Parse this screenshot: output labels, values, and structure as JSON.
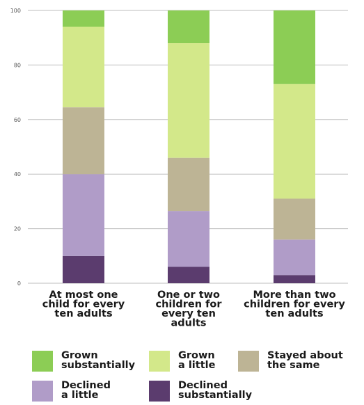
{
  "chart_data": {
    "type": "bar",
    "stacked": true,
    "title": "",
    "xlabel": "",
    "ylabel": "",
    "ylim": [
      0,
      100
    ],
    "yticks": [
      "0",
      "20",
      "40",
      "60",
      "80",
      "100"
    ],
    "grid": true,
    "legend_position": "bottom",
    "categories": [
      [
        "At most one",
        "child for every",
        "ten adults"
      ],
      [
        "One or two",
        "children for",
        "every ten",
        "adults"
      ],
      [
        "More than two",
        "children for every",
        "ten adults"
      ]
    ],
    "series": [
      {
        "name": [
          "Declined",
          "substantially"
        ],
        "color": "#5b3c6e",
        "values": [
          10,
          6,
          3
        ]
      },
      {
        "name": [
          "Declined",
          "a little"
        ],
        "color": "#b09cc8",
        "values": [
          30,
          20.5,
          13
        ]
      },
      {
        "name": [
          "Stayed about",
          "the same"
        ],
        "color": "#bdb495",
        "values": [
          24.5,
          19.5,
          15
        ]
      },
      {
        "name": [
          "Grown",
          "a little"
        ],
        "color": "#d3e88a",
        "values": [
          29.5,
          42,
          42
        ]
      },
      {
        "name": [
          "Grown",
          "substantially"
        ],
        "color": "#8ccd55",
        "values": [
          6,
          12,
          27
        ]
      }
    ],
    "legend_order": [
      4,
      3,
      2,
      1,
      0
    ]
  }
}
